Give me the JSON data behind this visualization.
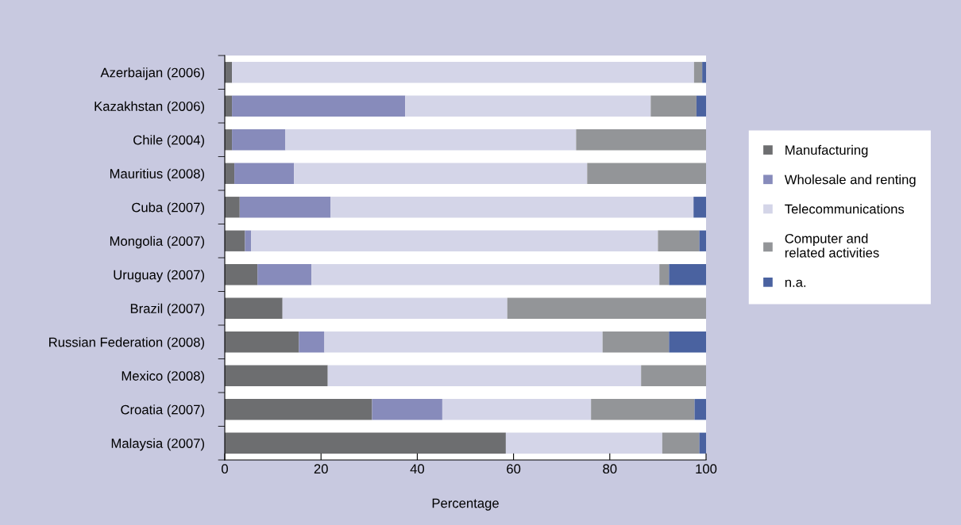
{
  "chart_data": {
    "type": "bar",
    "orientation": "horizontal",
    "stacked": true,
    "xlabel": "Percentage",
    "categories": [
      "Azerbaijan (2006)",
      "Kazakhstan (2006)",
      "Chile (2004)",
      "Mauritius (2008)",
      "Cuba (2007)",
      "Mongolia (2007)",
      "Uruguay (2007)",
      "Brazil (2007)",
      "Russian Federation (2008)",
      "Mexico (2008)",
      "Croatia (2007)",
      "Malaysia (2007)"
    ],
    "series": [
      {
        "name": "Manufacturing",
        "color": "#6d6e70",
        "values": [
          1.5,
          1.5,
          1.5,
          2.0,
          3.1,
          4.2,
          6.8,
          12.0,
          15.4,
          21.4,
          30.6,
          58.4
        ]
      },
      {
        "name": "Wholesale and renting",
        "color": "#878bbb",
        "values": [
          0,
          36,
          11.1,
          12.4,
          18.9,
          1.3,
          11.2,
          0,
          5.3,
          0,
          14.6,
          0
        ]
      },
      {
        "name": "Telecommunications",
        "color": "#d4d5e8",
        "values": [
          96,
          51,
          60.4,
          60.9,
          75.4,
          84.5,
          72.3,
          46.7,
          57.8,
          65.1,
          30.9,
          32.5
        ]
      },
      {
        "name": "Computer and\nrelated activities",
        "color": "#939598",
        "values": [
          1.7,
          9.5,
          27.0,
          24.7,
          0,
          8.6,
          2.0,
          41.3,
          13.8,
          13.5,
          21.5,
          7.7
        ]
      },
      {
        "name": "n.a.",
        "color": "#4a62a0",
        "values": [
          0.8,
          2.0,
          0,
          0,
          2.6,
          1.4,
          7.7,
          0,
          7.7,
          0,
          2.4,
          1.4
        ]
      }
    ],
    "xlim": [
      0,
      100
    ],
    "xticks": [
      0,
      20,
      40,
      60,
      80,
      100
    ],
    "grid": false,
    "legend": "right"
  }
}
